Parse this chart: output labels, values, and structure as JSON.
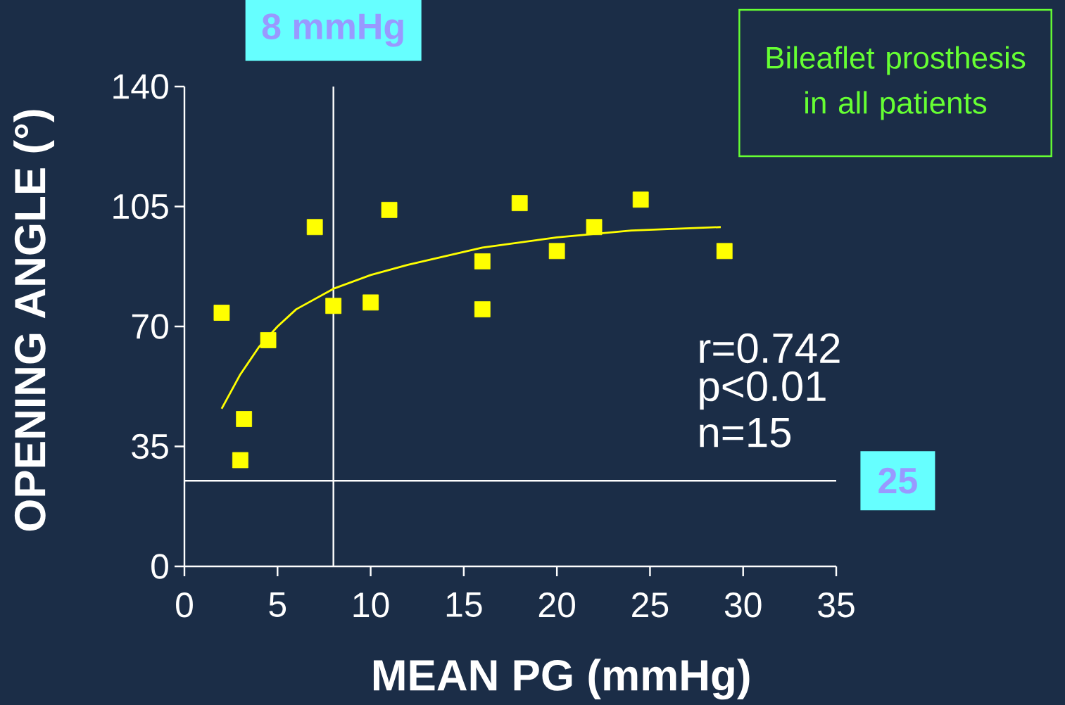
{
  "chart_data": {
    "type": "scatter",
    "xlabel": "MEAN PG (mmHg)",
    "ylabel": "OPENING ANGLE (°)",
    "annotations": [
      "Bileaflet prosthesis in all patients",
      "r=0.742",
      "p<0.01",
      "n=15"
    ],
    "xlim": [
      0,
      35
    ],
    "ylim": [
      0,
      140
    ],
    "xticks": [
      0,
      5,
      10,
      15,
      20,
      25,
      30,
      35
    ],
    "yticks": [
      0,
      35,
      70,
      105,
      140
    ],
    "marker": "square",
    "ref_lines": [
      {
        "axis": "x",
        "value": 8,
        "label": "8 mmHg",
        "color": "#ffffff"
      },
      {
        "axis": "y",
        "value": 25,
        "label": "25",
        "color": "#ffffff"
      }
    ],
    "series": [
      {
        "color": "#ffff00",
        "x": [
          2,
          3.2,
          3,
          4.5,
          7,
          8,
          10,
          11,
          16,
          16,
          18,
          20,
          22,
          24.5,
          29
        ],
        "values": [
          74,
          43,
          31,
          66,
          99,
          76,
          77,
          104,
          89,
          75,
          106,
          92,
          99,
          107,
          92
        ]
      },
      {
        "type": "line",
        "color": "#ffff00",
        "marker": "none",
        "x": [
          2,
          3,
          4,
          5,
          6,
          8,
          10,
          12,
          16,
          20,
          24,
          28.8
        ],
        "values": [
          46,
          56,
          64,
          70,
          75,
          81,
          85,
          88,
          93,
          96,
          98,
          99
        ]
      }
    ]
  }
}
